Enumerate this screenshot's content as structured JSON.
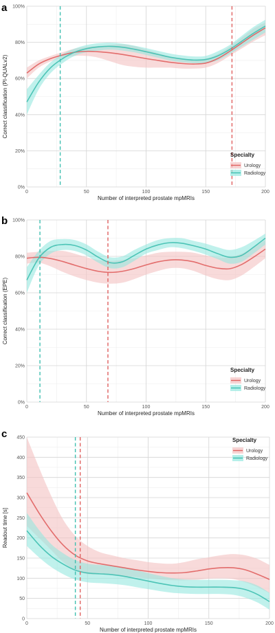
{
  "figure": {
    "colors": {
      "urology": "#e0605f",
      "urology_band": "#f4c2c2",
      "radiology": "#3fbfb0",
      "radiology_band": "#96e8e0",
      "grid_major": "#d4d4d4",
      "grid_minor": "#eeeeee"
    }
  },
  "chart_data": [
    {
      "panel": "a",
      "type": "line",
      "xlabel": "Number of interpreted prostate mpMRIs",
      "ylabel": "Correct classification (PI-QUALv2)",
      "xlim": [
        0,
        200
      ],
      "ylim": [
        0,
        100
      ],
      "x_ticks": [
        0,
        50,
        100,
        150,
        200
      ],
      "x_tick_labels": [
        "0",
        "50",
        "100",
        "150",
        "200"
      ],
      "y_ticks": [
        0,
        20,
        40,
        60,
        80,
        100
      ],
      "y_tick_labels": [
        "0%",
        "20%",
        "40%",
        "60%",
        "80%",
        "100%"
      ],
      "legend": {
        "title": "Specialty",
        "position": "bottom-right"
      },
      "grid": true,
      "series": [
        {
          "name": "Urology",
          "color_key": "urology",
          "x": [
            0,
            10,
            20,
            30,
            40,
            50,
            60,
            70,
            80,
            90,
            100,
            110,
            120,
            130,
            140,
            150,
            160,
            170,
            180,
            190,
            200
          ],
          "y": [
            63,
            68,
            71,
            73,
            74.5,
            75,
            74.8,
            74.2,
            73.3,
            72.2,
            71,
            70,
            69,
            68.3,
            68,
            68.5,
            71,
            75,
            79.5,
            84,
            88
          ],
          "lower": [
            60,
            66,
            69.5,
            71.5,
            72.5,
            72.5,
            71.5,
            69.5,
            67.5,
            66.5,
            66,
            66,
            66,
            65.5,
            65.5,
            66,
            68.5,
            72.5,
            76.5,
            80.5,
            84
          ],
          "upper": [
            66,
            70,
            72.5,
            74.5,
            76.5,
            77.5,
            78,
            78.5,
            79,
            78,
            76,
            74,
            72,
            71,
            70.5,
            71,
            73.5,
            77.5,
            82.5,
            87.5,
            91
          ],
          "threshold_x": 172
        },
        {
          "name": "Radiology",
          "color_key": "radiology",
          "x": [
            0,
            10,
            20,
            30,
            40,
            50,
            60,
            70,
            80,
            90,
            100,
            110,
            120,
            130,
            140,
            150,
            160,
            170,
            180,
            190,
            200
          ],
          "y": [
            47,
            58,
            66,
            71,
            74.5,
            76.5,
            77.5,
            77.8,
            77.3,
            76.2,
            74.8,
            73.3,
            71.8,
            70.8,
            70.2,
            70.5,
            72.5,
            76,
            80.5,
            85,
            89
          ],
          "lower": [
            40,
            54,
            63,
            68.5,
            72.5,
            74.5,
            75.5,
            76,
            75.5,
            74.5,
            73,
            71.5,
            70,
            69,
            68.5,
            68.5,
            70,
            73.5,
            77.5,
            81.5,
            85.5
          ],
          "upper": [
            54,
            62,
            69,
            73.5,
            76.5,
            78.5,
            79.5,
            79.8,
            79.3,
            78.2,
            76.8,
            75.3,
            73.8,
            72.8,
            72.2,
            72.5,
            75,
            78.5,
            83.5,
            88.5,
            92.5
          ],
          "threshold_x": 28
        }
      ]
    },
    {
      "panel": "b",
      "type": "line",
      "xlabel": "Number of interpreted prostate mpMRIs",
      "ylabel": "Correct classification (EPE)",
      "xlim": [
        0,
        200
      ],
      "ylim": [
        0,
        100
      ],
      "x_ticks": [
        0,
        50,
        100,
        150,
        200
      ],
      "x_tick_labels": [
        "0",
        "50",
        "100",
        "150",
        "200"
      ],
      "y_ticks": [
        0,
        20,
        40,
        60,
        80,
        100
      ],
      "y_tick_labels": [
        "0%",
        "20%",
        "40%",
        "60%",
        "80%",
        "100%"
      ],
      "legend": {
        "title": "Specialty",
        "position": "bottom-right"
      },
      "grid": true,
      "series": [
        {
          "name": "Urology",
          "color_key": "urology",
          "x": [
            0,
            10,
            20,
            30,
            40,
            50,
            60,
            70,
            80,
            90,
            100,
            110,
            120,
            130,
            140,
            150,
            160,
            170,
            180,
            190,
            200
          ],
          "y": [
            79,
            79.5,
            78.8,
            77.2,
            75.2,
            73.3,
            71.8,
            71.2,
            71.8,
            73.3,
            75.3,
            77,
            78,
            78,
            77,
            75,
            73.5,
            73.2,
            75.5,
            79.5,
            84
          ],
          "lower": [
            76,
            76.5,
            74.5,
            71.5,
            69,
            67,
            65.5,
            65,
            65.5,
            67.5,
            70,
            72,
            73.5,
            73.5,
            72,
            69.5,
            67.5,
            67,
            69.5,
            74,
            79
          ],
          "upper": [
            82,
            82.5,
            83,
            83,
            81.5,
            79.5,
            78,
            77.5,
            78,
            79,
            80.5,
            82,
            82.5,
            82.5,
            82,
            80.5,
            79.5,
            79.5,
            81.5,
            85,
            89
          ],
          "threshold_x": 68
        },
        {
          "name": "Radiology",
          "color_key": "radiology",
          "x": [
            0,
            10,
            20,
            30,
            40,
            50,
            60,
            70,
            80,
            90,
            100,
            110,
            120,
            130,
            140,
            150,
            160,
            170,
            180,
            190,
            200
          ],
          "y": [
            67,
            79,
            85,
            86.5,
            86,
            83.5,
            79.5,
            76.5,
            77,
            80.5,
            84,
            86.3,
            87.5,
            87.2,
            85.8,
            84,
            81.5,
            79.5,
            80.5,
            85,
            90
          ],
          "lower": [
            60,
            75,
            81.5,
            83.5,
            83,
            80.5,
            76.5,
            73.5,
            74,
            77.5,
            81.5,
            83.5,
            85,
            84.5,
            83,
            81,
            78.5,
            76,
            77,
            81.5,
            86.5
          ],
          "upper": [
            74,
            83,
            88.5,
            89.5,
            89,
            86.5,
            82.5,
            79.5,
            80,
            83.5,
            86.5,
            89,
            90,
            90,
            88.5,
            87,
            85,
            83.5,
            85,
            88.5,
            92.5
          ],
          "threshold_x": 11
        }
      ]
    },
    {
      "panel": "c",
      "type": "line",
      "xlabel": "Number of interpreted prostate mpMRIs",
      "ylabel": "Readout time [s]",
      "xlim": [
        0,
        200
      ],
      "ylim": [
        0,
        450
      ],
      "x_ticks": [
        0,
        50,
        100,
        150,
        200
      ],
      "x_tick_labels": [
        "0",
        "50",
        "100",
        "150",
        "200"
      ],
      "y_ticks": [
        0,
        50,
        100,
        150,
        200,
        250,
        300,
        350,
        400,
        450
      ],
      "y_tick_labels": [
        "0",
        "50",
        "100",
        "150",
        "200",
        "250",
        "300",
        "350",
        "400",
        "450"
      ],
      "legend": {
        "title": "Specialty",
        "position": "top-right"
      },
      "grid": true,
      "series": [
        {
          "name": "Urology",
          "color_key": "urology",
          "x": [
            0,
            10,
            20,
            30,
            40,
            50,
            60,
            70,
            80,
            90,
            100,
            110,
            120,
            130,
            140,
            150,
            160,
            170,
            180,
            190,
            200
          ],
          "y": [
            312,
            262,
            218,
            182,
            157,
            143,
            136,
            131,
            126,
            121,
            117,
            114,
            113,
            114,
            118,
            123,
            126,
            126,
            121,
            110,
            97
          ],
          "lower": [
            230,
            200,
            170,
            140,
            120,
            110,
            110,
            108,
            105,
            103,
            100,
            97,
            95,
            95,
            96,
            99,
            100,
            98,
            90,
            78,
            63
          ],
          "upper": [
            450,
            375,
            305,
            245,
            205,
            180,
            165,
            157,
            150,
            145,
            140,
            137,
            136,
            140,
            147,
            152,
            157,
            160,
            157,
            148,
            133
          ]
        },
        {
          "name": "Radiology",
          "color_key": "radiology",
          "x": [
            0,
            10,
            20,
            30,
            40,
            50,
            60,
            70,
            80,
            90,
            100,
            110,
            120,
            130,
            140,
            150,
            160,
            170,
            180,
            190,
            200
          ],
          "y": [
            218,
            183,
            155,
            135,
            120,
            113,
            111,
            109,
            105,
            99,
            93,
            87,
            82,
            79,
            78,
            78,
            78,
            77,
            72,
            60,
            42
          ],
          "lower": [
            180,
            152,
            128,
            110,
            97,
            90,
            88,
            86,
            83,
            78,
            73,
            68,
            64,
            62,
            61,
            61,
            61,
            59,
            52,
            40,
            22
          ],
          "upper": [
            262,
            220,
            185,
            162,
            145,
            136,
            133,
            131,
            127,
            120,
            113,
            106,
            100,
            97,
            96,
            96,
            96,
            95,
            92,
            82,
            64
          ]
        }
      ],
      "threshold_lines": [
        {
          "name": "Urology",
          "x": 44
        },
        {
          "name": "Radiology",
          "x": 40
        }
      ]
    }
  ]
}
